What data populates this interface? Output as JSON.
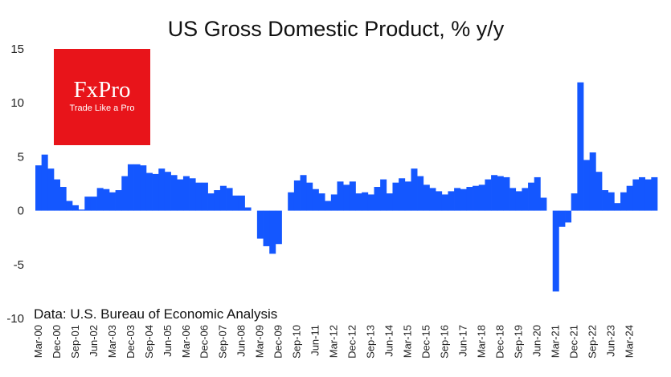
{
  "chart_data": {
    "type": "bar",
    "title": "US Gross Domestic Product, % y/y",
    "ylim": [
      -10,
      15
    ],
    "yticks": [
      15,
      10,
      5,
      0,
      -5,
      -10
    ],
    "grid": false,
    "bar_color": "#1457FF",
    "start_quarter": "Mar-00",
    "series": [
      {
        "name": "US GDP % y/y",
        "values": [
          4.2,
          5.2,
          3.9,
          2.9,
          2.2,
          0.9,
          0.5,
          0.1,
          1.3,
          1.3,
          2.1,
          2.0,
          1.7,
          1.9,
          3.2,
          4.3,
          4.3,
          4.2,
          3.5,
          3.4,
          3.9,
          3.6,
          3.3,
          2.9,
          3.2,
          3.0,
          2.6,
          2.6,
          1.6,
          1.9,
          2.3,
          2.1,
          1.4,
          1.4,
          0.3,
          0.0,
          -2.6,
          -3.3,
          -4.0,
          -3.1,
          0.0,
          1.7,
          2.8,
          3.3,
          2.6,
          2.0,
          1.6,
          0.9,
          1.5,
          2.7,
          2.4,
          2.7,
          1.6,
          1.7,
          1.5,
          2.2,
          2.9,
          1.6,
          2.6,
          3.0,
          2.7,
          3.9,
          3.2,
          2.4,
          2.1,
          1.8,
          1.5,
          1.8,
          2.1,
          2.0,
          2.2,
          2.3,
          2.4,
          2.9,
          3.3,
          3.2,
          3.1,
          2.1,
          1.8,
          2.1,
          2.6,
          3.1,
          1.2,
          0.0,
          -7.5,
          -1.5,
          -1.1,
          1.6,
          11.9,
          4.7,
          5.4,
          3.6,
          1.9,
          1.7,
          0.7,
          1.7,
          2.3,
          2.9,
          3.1,
          2.9,
          3.1
        ]
      }
    ],
    "x_tick_labels": [
      "Mar-00",
      "Dec-00",
      "Sep-01",
      "Jun-02",
      "Mar-03",
      "Dec-03",
      "Sep-04",
      "Jun-05",
      "Mar-06",
      "Dec-06",
      "Sep-07",
      "Jun-08",
      "Mar-09",
      "Dec-09",
      "Sep-10",
      "Jun-11",
      "Mar-12",
      "Dec-12",
      "Sep-13",
      "Jun-14",
      "Mar-15",
      "Dec-15",
      "Sep-16",
      "Jun-17",
      "Mar-18",
      "Dec-18",
      "Sep-19",
      "Jun-20",
      "Mar-21",
      "Dec-21",
      "Sep-22",
      "Jun-23",
      "Mar-24"
    ],
    "x_tick_every": 3,
    "source_note": "Data: U.S. Bureau of Economic Analysis"
  },
  "logo": {
    "text": "FxPro",
    "tagline": "Trade Like a Pro",
    "color": "#E8141A"
  }
}
